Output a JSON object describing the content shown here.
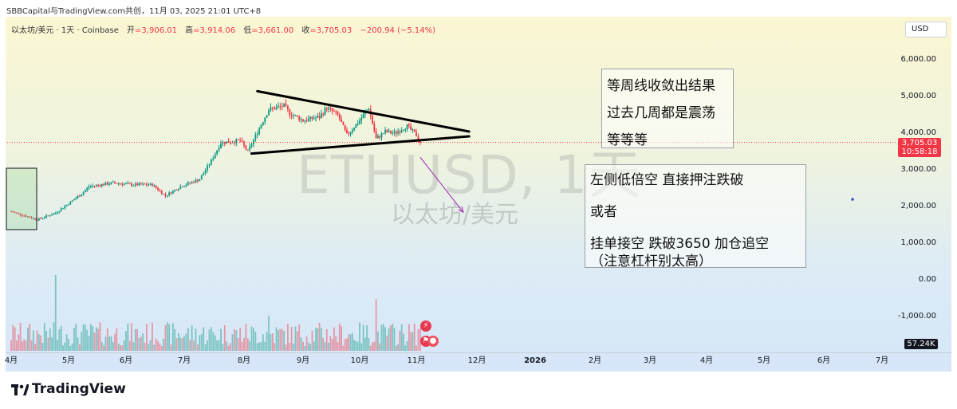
{
  "header": {
    "title": "SBBCapital与TradingView.com共创，11月 03, 2025 21:01 UTC+8"
  },
  "legend": {
    "symbol": "以太坊/美元 · 1天 · Coinbase",
    "open_label": "开",
    "open": "=3,906.01",
    "high_label": "高",
    "high": "=3,914.06",
    "low_label": "低",
    "low": "=3,661.00",
    "close_label": "收",
    "close": "=3,705.03",
    "change": "−200.94 (−5.14%)"
  },
  "currency": "USD",
  "watermark": {
    "symbol": "ETHUSD, 1天",
    "name": "以太坊/美元"
  },
  "notes": {
    "box1": [
      "等周线收敛出结果",
      "过去几周都是震荡",
      "等等等"
    ],
    "box2": [
      "左侧低倍空   直接押注跌破",
      "或者",
      "挂单接空   跌破3650 加仓追空",
      "（注意杠杆别太高）"
    ]
  },
  "price_tag": {
    "price": "3,705.03",
    "countdown": "10:58:18"
  },
  "volume_tag": "57.24K",
  "brand": "TradingView",
  "colors": {
    "up": "#089981",
    "down": "#f23645",
    "accent": "#f23645"
  },
  "chart_data": {
    "type": "candlestick",
    "symbol": "ETHUSD",
    "interval": "1D",
    "y_ticks": [
      "6,000.00",
      "5,000.00",
      "4,000.00",
      "3,000.00",
      "2,000.00",
      "1,000.00",
      "0.00",
      "-1,000.00"
    ],
    "y_tick_values": [
      6000,
      5000,
      4000,
      3000,
      2000,
      1000,
      0,
      -1000
    ],
    "x_ticks": [
      "4月",
      "5月",
      "6月",
      "7月",
      "8月",
      "9月",
      "10月",
      "11月",
      "12月",
      "2026",
      "2月",
      "3月",
      "4月",
      "5月",
      "6月",
      "7月"
    ],
    "last_close": 3705.03,
    "approx_monthly_closes": [
      {
        "month": "4月",
        "close": 1800
      },
      {
        "month": "5月",
        "close": 2530
      },
      {
        "month": "6月",
        "close": 2490
      },
      {
        "month": "7月",
        "close": 3700
      },
      {
        "month": "8月",
        "close": 4400
      },
      {
        "month": "9月",
        "close": 4150
      },
      {
        "month": "10月",
        "close": 3850
      },
      {
        "month": "11月",
        "close": 3705
      }
    ],
    "drawings": [
      {
        "type": "trendline",
        "label": "descending resistance",
        "from": {
          "date": "2025-08-08",
          "price": 5100
        },
        "to": {
          "date": "2025-11-28",
          "price": 4000
        }
      },
      {
        "type": "trendline",
        "label": "ascending support",
        "from": {
          "date": "2025-08-05",
          "price": 3400
        },
        "to": {
          "date": "2025-11-28",
          "price": 3870
        }
      },
      {
        "type": "arrow",
        "from": {
          "date": "2025-11-03",
          "price": 3300
        },
        "to": {
          "date": "2025-11-25",
          "price": 1800
        }
      }
    ],
    "grid": false,
    "y_axis_side": "right"
  }
}
